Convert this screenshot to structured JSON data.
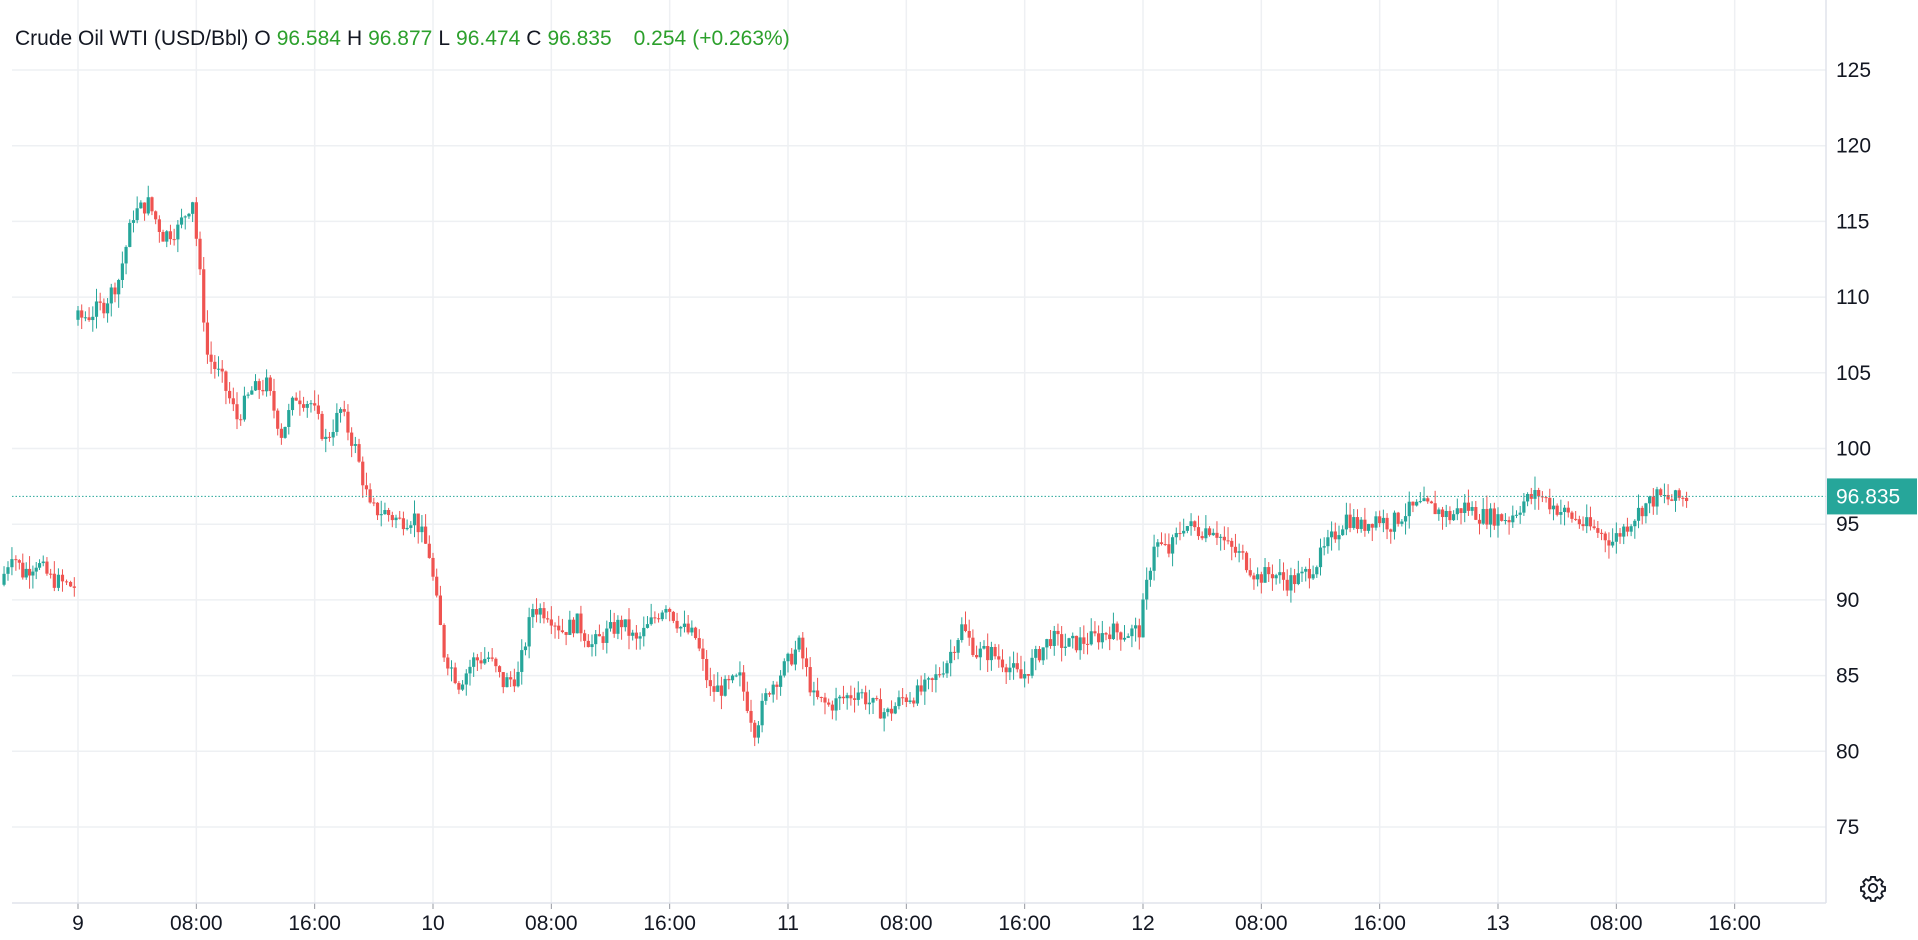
{
  "legend": {
    "symbol": "Crude Oil WTI (USD/Bbl)",
    "o_label": "O",
    "o_value": "96.584",
    "h_label": "H",
    "h_value": "96.877",
    "l_label": "L",
    "l_value": "96.474",
    "c_label": "C",
    "c_value": "96.835",
    "change": "0.254",
    "change_pct": "(+0.263%)"
  },
  "last_price_tag": "96.835",
  "colors": {
    "up": "#26a69a",
    "down": "#ef5350",
    "grid": "#eef0f3",
    "text": "#131722",
    "legend_value": "#2ca02c",
    "price_line": "#26a69a"
  },
  "settings_icon": "gear-icon",
  "chart_data": {
    "type": "candlestick",
    "title": "Crude Oil WTI (USD/Bbl)",
    "ylim": [
      70,
      130
    ],
    "y_ticks": [
      "75",
      "80",
      "85",
      "90",
      "95",
      "100",
      "105",
      "110",
      "115",
      "120",
      "125"
    ],
    "y_tick_values": [
      75,
      80,
      85,
      90,
      95,
      100,
      105,
      110,
      115,
      120,
      125
    ],
    "x_range_hours": [
      -5,
      197
    ],
    "x_ticks": [
      {
        "label": "9",
        "hour": 0
      },
      {
        "label": "08:00",
        "hour": 8
      },
      {
        "label": "16:00",
        "hour": 16
      },
      {
        "label": "10",
        "hour": 24
      },
      {
        "label": "08:00",
        "hour": 32
      },
      {
        "label": "16:00",
        "hour": 40
      },
      {
        "label": "11",
        "hour": 48
      },
      {
        "label": "08:00",
        "hour": 56
      },
      {
        "label": "16:00",
        "hour": 64
      },
      {
        "label": "12",
        "hour": 72
      },
      {
        "label": "08:00",
        "hour": 80
      },
      {
        "label": "16:00",
        "hour": 88
      },
      {
        "label": "13",
        "hour": 96
      },
      {
        "label": "08:00",
        "hour": 104
      },
      {
        "label": "16:00",
        "hour": 112
      }
    ],
    "last_price": 96.835,
    "grid": true,
    "session_gaps_hours": [
      [
        0,
        4
      ],
      [
        72,
        73
      ]
    ],
    "path": [
      [
        -5,
        91.0
      ],
      [
        -4.2,
        93.2
      ],
      [
        -3.5,
        91.8
      ],
      [
        -2.6,
        92.5
      ],
      [
        -1.6,
        91.4
      ],
      [
        -0.5,
        91.0
      ],
      [
        0,
        90.9
      ],
      [
        0,
        108.5
      ],
      [
        1,
        108.8
      ],
      [
        2,
        109.5
      ],
      [
        3,
        111.2
      ],
      [
        4,
        115.5
      ],
      [
        5,
        116.2
      ],
      [
        6,
        114.1
      ],
      [
        7,
        114.5
      ],
      [
        8,
        116.5
      ],
      [
        9,
        106.2
      ],
      [
        10,
        104.5
      ],
      [
        11,
        102.0
      ],
      [
        12,
        103.8
      ],
      [
        13,
        104.2
      ],
      [
        14,
        101.0
      ],
      [
        15,
        103.5
      ],
      [
        16,
        103.0
      ],
      [
        17,
        100.5
      ],
      [
        18,
        102.5
      ],
      [
        19,
        100.0
      ],
      [
        20,
        96.0
      ],
      [
        21,
        95.8
      ],
      [
        22,
        95.2
      ],
      [
        23,
        95.5
      ],
      [
        24,
        93.0
      ],
      [
        25,
        86.5
      ],
      [
        26,
        84.5
      ],
      [
        27,
        86.0
      ],
      [
        28,
        86.2
      ],
      [
        29,
        84.5
      ],
      [
        30,
        85.0
      ],
      [
        31,
        89.5
      ],
      [
        32,
        89.2
      ],
      [
        33,
        88.0
      ],
      [
        34,
        88.5
      ],
      [
        35,
        87.0
      ],
      [
        36,
        87.8
      ],
      [
        37,
        88.5
      ],
      [
        38,
        87.2
      ],
      [
        39,
        88.5
      ],
      [
        40,
        89.8
      ],
      [
        41,
        88.2
      ],
      [
        42,
        87.5
      ],
      [
        43,
        84.0
      ],
      [
        44,
        84.2
      ],
      [
        45,
        84.8
      ],
      [
        46,
        81.5
      ],
      [
        47,
        84.2
      ],
      [
        48,
        85.5
      ],
      [
        49,
        87.0
      ],
      [
        50,
        83.5
      ],
      [
        51,
        83.0
      ],
      [
        52,
        83.5
      ],
      [
        53,
        84.0
      ],
      [
        54,
        83.0
      ],
      [
        55,
        82.5
      ],
      [
        56,
        83.5
      ],
      [
        57,
        83.8
      ],
      [
        58,
        84.5
      ],
      [
        59,
        86.0
      ],
      [
        60,
        88.2
      ],
      [
        61,
        86.5
      ],
      [
        62,
        86.5
      ],
      [
        63,
        85.8
      ],
      [
        64,
        84.8
      ],
      [
        65,
        86.2
      ],
      [
        66,
        87.5
      ],
      [
        67,
        87.0
      ],
      [
        68,
        87.2
      ],
      [
        69,
        87.5
      ],
      [
        70,
        88.0
      ],
      [
        71,
        87.8
      ],
      [
        72,
        88.0
      ],
      [
        73,
        93.8
      ],
      [
        74,
        93.2
      ],
      [
        75,
        95.0
      ],
      [
        76,
        94.6
      ],
      [
        77,
        94.8
      ],
      [
        78,
        93.5
      ],
      [
        79,
        92.8
      ],
      [
        80,
        91.5
      ],
      [
        81,
        91.8
      ],
      [
        82,
        91.2
      ],
      [
        83,
        91.5
      ],
      [
        84,
        92.5
      ],
      [
        85,
        94.0
      ],
      [
        86,
        95.5
      ],
      [
        87,
        94.8
      ],
      [
        88,
        95.5
      ],
      [
        89,
        95.0
      ],
      [
        90,
        95.8
      ],
      [
        91,
        96.2
      ],
      [
        92,
        96.0
      ],
      [
        93,
        95.5
      ],
      [
        94,
        96.2
      ],
      [
        95,
        95.6
      ],
      [
        96,
        95.5
      ],
      [
        97,
        95.4
      ],
      [
        98,
        96.5
      ],
      [
        99,
        97.0
      ],
      [
        100,
        96.2
      ],
      [
        101,
        95.6
      ],
      [
        102,
        95.0
      ],
      [
        103,
        94.5
      ],
      [
        104,
        93.9
      ],
      [
        105,
        95.0
      ],
      [
        106,
        96.1
      ],
      [
        107,
        96.8
      ],
      [
        108,
        96.6
      ],
      [
        109,
        96.8
      ]
    ]
  }
}
